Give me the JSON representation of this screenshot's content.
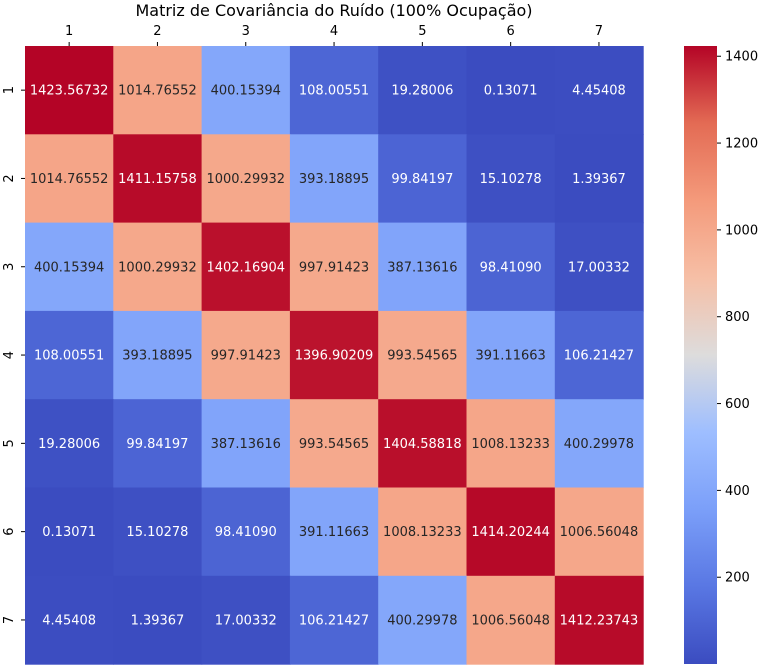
{
  "chart_data": {
    "type": "heatmap",
    "title": "Matriz de Covariância do Ruído (100% Ocupação)",
    "xlabel": "",
    "ylabel": "",
    "x_categories": [
      "1",
      "2",
      "3",
      "4",
      "5",
      "6",
      "7"
    ],
    "y_categories": [
      "1",
      "2",
      "3",
      "4",
      "5",
      "6",
      "7"
    ],
    "x_axis_position": "top",
    "colormap": "coolwarm",
    "vmin": 0.13071,
    "vmax": 1423.56732,
    "colorbar_ticks": [
      "200",
      "400",
      "600",
      "800",
      "1000",
      "1200",
      "1400"
    ],
    "colorbar_tick_values": [
      200,
      400,
      600,
      800,
      1000,
      1200,
      1400
    ],
    "values": [
      [
        1423.56732,
        1014.76552,
        400.15394,
        108.00551,
        19.28006,
        0.13071,
        4.45408
      ],
      [
        1014.76552,
        1411.15758,
        1000.29932,
        393.18895,
        99.84197,
        15.10278,
        1.39367
      ],
      [
        400.15394,
        1000.29932,
        1402.16904,
        997.91423,
        387.13616,
        98.4109,
        17.00332
      ],
      [
        108.00551,
        393.18895,
        997.91423,
        1396.90209,
        993.54565,
        391.11663,
        106.21427
      ],
      [
        19.28006,
        99.84197,
        387.13616,
        993.54565,
        1404.58818,
        1008.13233,
        400.29978
      ],
      [
        0.13071,
        15.10278,
        98.4109,
        391.11663,
        1008.13233,
        1414.20244,
        1006.56048
      ],
      [
        4.45408,
        1.39367,
        17.00332,
        106.21427,
        400.29978,
        1006.56048,
        1412.23743
      ]
    ],
    "cell_labels": [
      [
        "1423.56732",
        "1014.76552",
        "400.15394",
        "108.00551",
        "19.28006",
        "0.13071",
        "4.45408"
      ],
      [
        "1014.76552",
        "1411.15758",
        "1000.29932",
        "393.18895",
        "99.84197",
        "15.10278",
        "1.39367"
      ],
      [
        "400.15394",
        "1000.29932",
        "1402.16904",
        "997.91423",
        "387.13616",
        "98.41090",
        "17.00332"
      ],
      [
        "108.00551",
        "393.18895",
        "997.91423",
        "1396.90209",
        "993.54565",
        "391.11663",
        "106.21427"
      ],
      [
        "19.28006",
        "99.84197",
        "387.13616",
        "993.54565",
        "1404.58818",
        "1008.13233",
        "400.29978"
      ],
      [
        "0.13071",
        "15.10278",
        "98.41090",
        "391.11663",
        "1008.13233",
        "1414.20244",
        "1006.56048"
      ],
      [
        "4.45408",
        "1.39367",
        "17.00332",
        "106.21427",
        "400.29978",
        "1006.56048",
        "1412.23743"
      ]
    ]
  }
}
